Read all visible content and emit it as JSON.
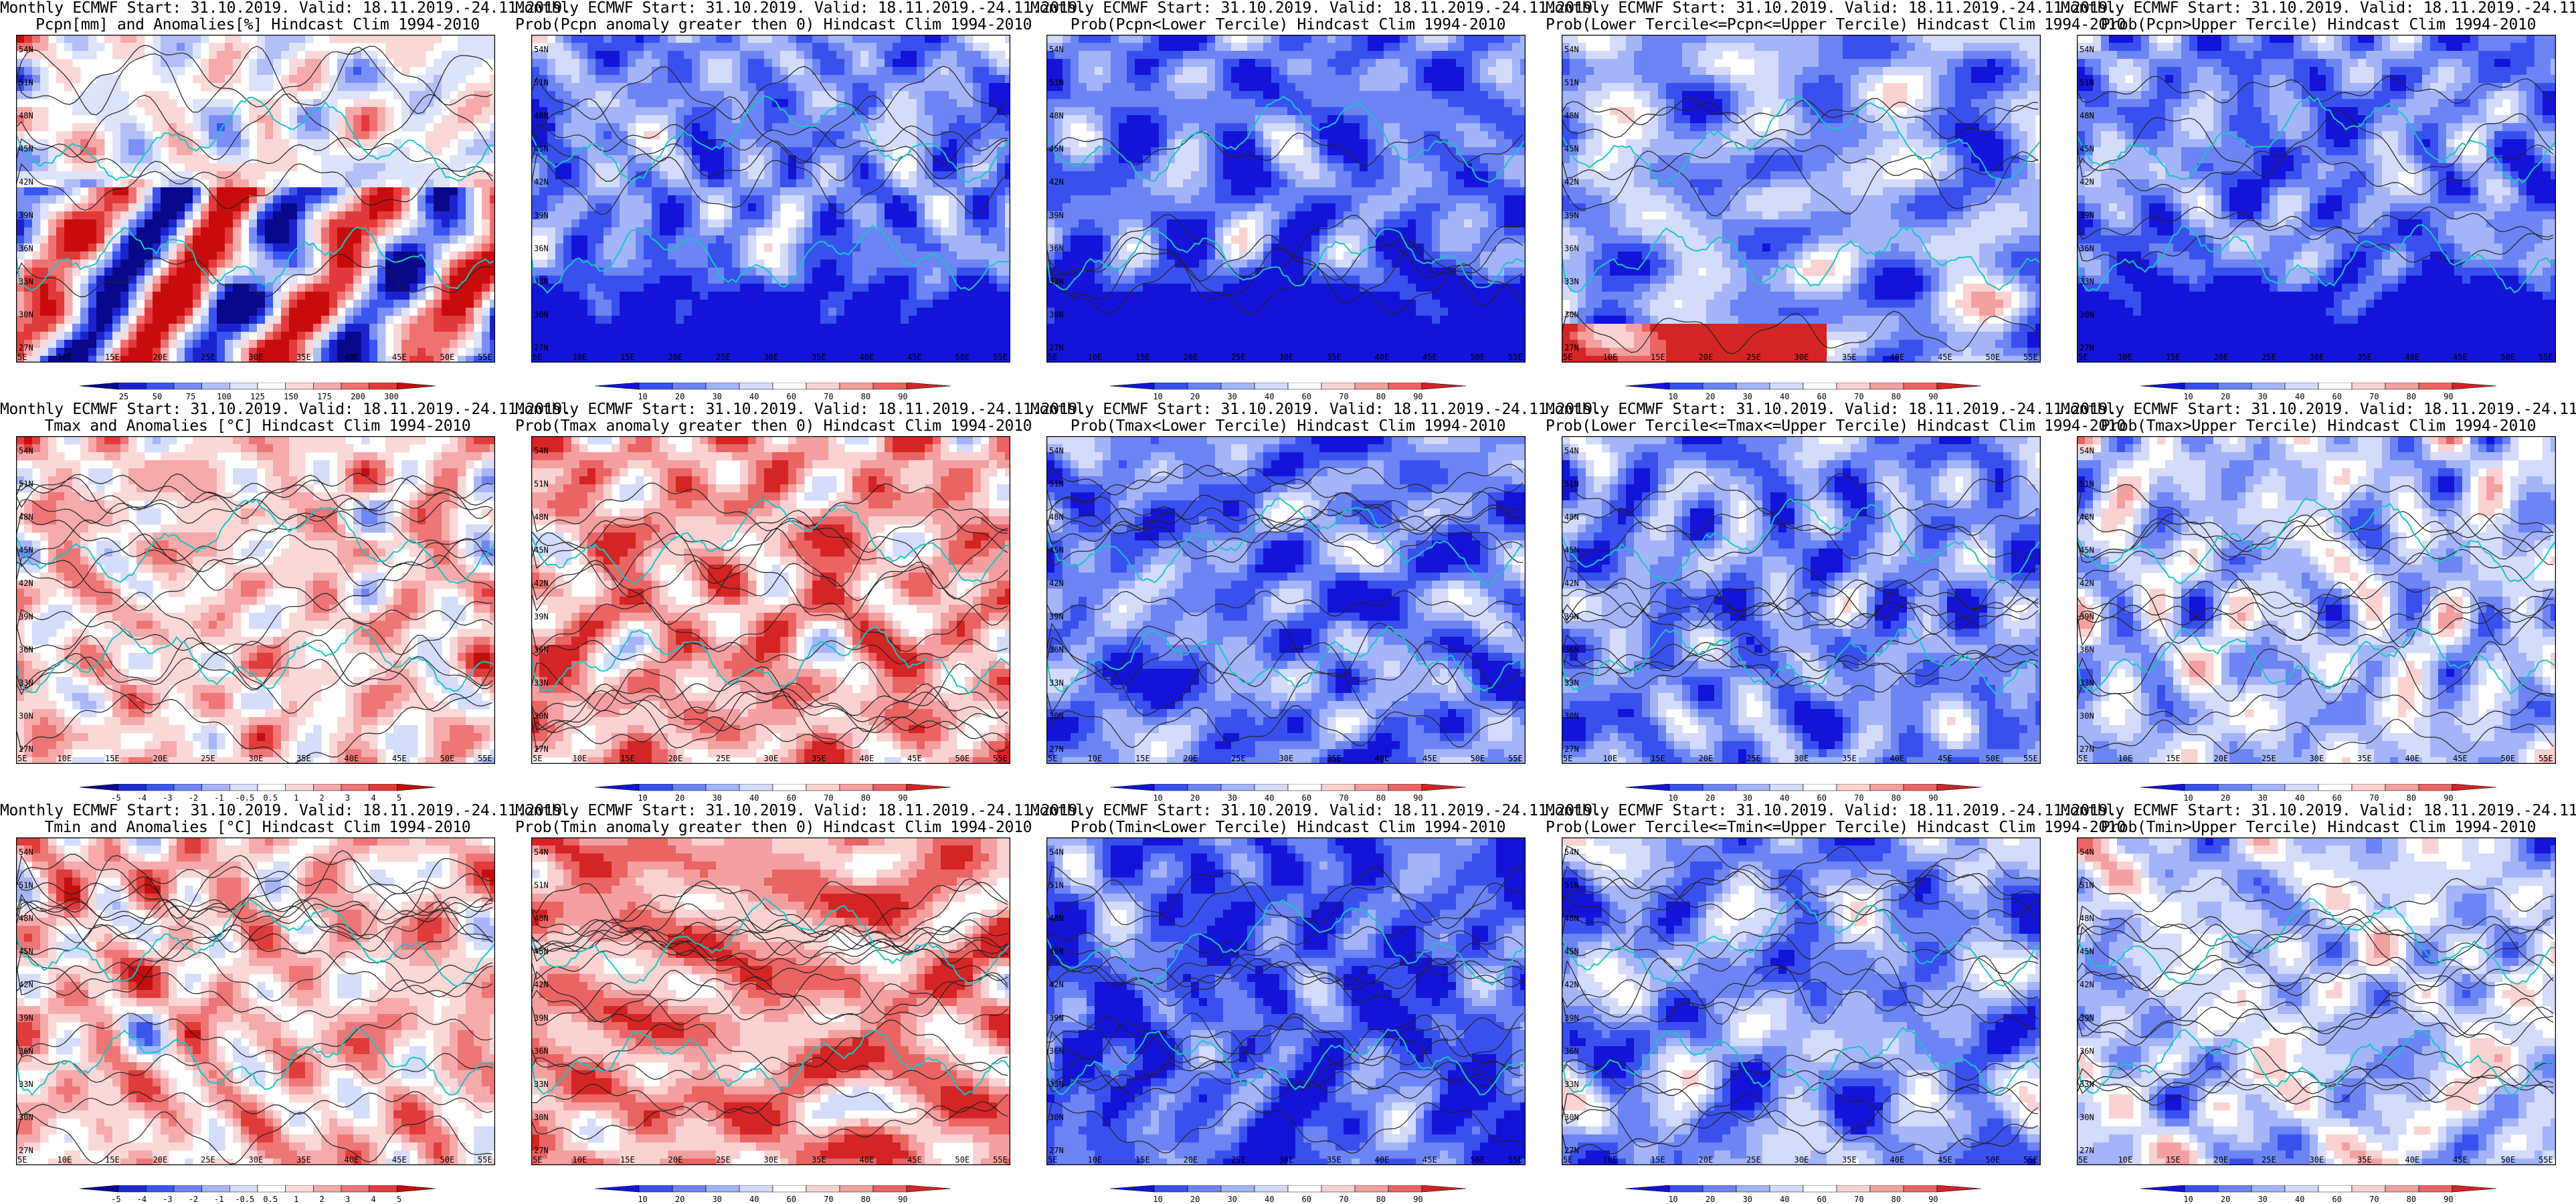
{
  "header_line": "Monthly ECMWF Start: 31.10.2019. Valid: 18.11.2019.-24.11.2019.",
  "axis": {
    "lat_ticks": [
      "54N",
      "51N",
      "48N",
      "45N",
      "42N",
      "39N",
      "36N",
      "33N",
      "30N",
      "27N"
    ],
    "lon_ticks": [
      "5E",
      "10E",
      "15E",
      "20E",
      "25E",
      "30E",
      "35E",
      "40E",
      "45E",
      "50E",
      "55E"
    ]
  },
  "colorbars": {
    "precip": {
      "labels": [
        "25",
        "50",
        "75",
        "100",
        "125",
        "150",
        "175",
        "200",
        "300"
      ],
      "colors": [
        "#08088a",
        "#1a22d0",
        "#3a55f0",
        "#7a8ef6",
        "#b0bff8",
        "#dde3fb",
        "#ffffff",
        "#fbd8d8",
        "#f7aaaa",
        "#ef7272",
        "#e23a3a",
        "#c80c0c"
      ]
    },
    "prob": {
      "labels": [
        "10",
        "20",
        "30",
        "40",
        "60",
        "70",
        "80",
        "90"
      ],
      "colors": [
        "#1414d8",
        "#3a50ee",
        "#6c84f4",
        "#a3b4f8",
        "#d4dbfb",
        "#ffffff",
        "#fad2d2",
        "#f4a0a0",
        "#ea6464",
        "#d42424"
      ]
    },
    "temp": {
      "labels": [
        "-5",
        "-4",
        "-3",
        "-2",
        "-1",
        "-0.5",
        "0.5",
        "1",
        "2",
        "3",
        "4",
        "5"
      ],
      "colors": [
        "#0a0a90",
        "#1c2ad0",
        "#3a56ee",
        "#6e86f4",
        "#a6b6f8",
        "#d6ddfb",
        "#ffffff",
        "#fbd8d8",
        "#f6aaaa",
        "#ee7676",
        "#e03c3c",
        "#c40e0e"
      ]
    }
  },
  "palette": {
    "coast": "#19c6c6",
    "contour": "#222222",
    "frame": "#000000"
  },
  "panels": [
    {
      "title": "Pcpn[mm] and Anomalies[%] Hindcast Clim 1994-2010",
      "colorbar": "precip",
      "bias": 0.05,
      "south": "wet-red",
      "contours": 6
    },
    {
      "title": "Prob(Pcpn anomaly greater then 0) Hindcast Clim 1994-2010",
      "colorbar": "prob",
      "bias": -0.45,
      "south": "deep-blue",
      "contours": 5
    },
    {
      "title": "Prob(Pcpn<Lower Tercile) Hindcast Clim 1994-2010",
      "colorbar": "prob",
      "bias": -0.55,
      "south": "deep-blue",
      "contours": 5
    },
    {
      "title": "Prob(Lower Tercile<=Pcpn<=Upper Tercile) Hindcast Clim 1994-2010",
      "colorbar": "prob",
      "bias": -0.35,
      "south": "red-band",
      "contours": 5
    },
    {
      "title": "Prob(Pcpn>Upper Tercile) Hindcast Clim 1994-2010",
      "colorbar": "prob",
      "bias": -0.5,
      "south": "deep-blue",
      "contours": 5
    },
    {
      "title": "Tmax and Anomalies [°C] Hindcast Clim 1994-2010",
      "colorbar": "temp",
      "bias": 0.25,
      "south": "none",
      "contours": 14
    },
    {
      "title": "Prob(Tmax anomaly greater then 0) Hindcast Clim 1994-2010",
      "colorbar": "prob",
      "bias": 0.45,
      "south": "none",
      "contours": 14
    },
    {
      "title": "Prob(Tmax<Lower Tercile) Hindcast Clim 1994-2010",
      "colorbar": "prob",
      "bias": -0.5,
      "south": "none",
      "contours": 12
    },
    {
      "title": "Prob(Lower Tercile<=Tmax<=Upper Tercile) Hindcast Clim 1994-2010",
      "colorbar": "prob",
      "bias": -0.45,
      "south": "none",
      "contours": 12
    },
    {
      "title": "Prob(Tmax>Upper Tercile) Hindcast Clim 1994-2010",
      "colorbar": "prob",
      "bias": -0.2,
      "south": "none",
      "contours": 12
    },
    {
      "title": "Tmin and Anomalies [°C] Hindcast Clim 1994-2010",
      "colorbar": "temp",
      "bias": 0.3,
      "south": "none",
      "contours": 16
    },
    {
      "title": "Prob(Tmin anomaly greater then 0) Hindcast Clim 1994-2010",
      "colorbar": "prob",
      "bias": 0.5,
      "south": "none",
      "contours": 16
    },
    {
      "title": "Prob(Tmin<Lower Tercile) Hindcast Clim 1994-2010",
      "colorbar": "prob",
      "bias": -0.65,
      "south": "none",
      "contours": 14
    },
    {
      "title": "Prob(Lower Tercile<=Tmin<=Upper Tercile) Hindcast Clim 1994-2010",
      "colorbar": "prob",
      "bias": -0.4,
      "south": "none",
      "contours": 14
    },
    {
      "title": "Prob(Tmin>Upper Tercile) Hindcast Clim 1994-2010",
      "colorbar": "prob",
      "bias": -0.15,
      "south": "none",
      "contours": 14
    }
  ]
}
